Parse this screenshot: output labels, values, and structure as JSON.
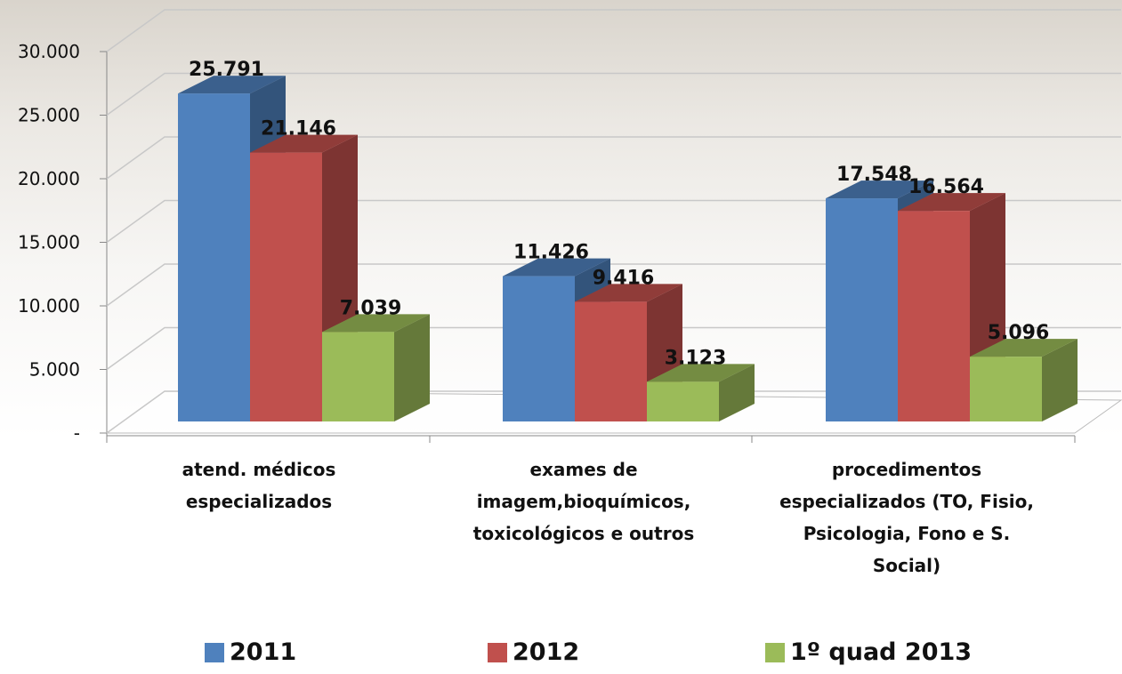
{
  "chart_data": {
    "type": "bar3d",
    "categories": [
      "atend. médicos especializados",
      "exames de imagem,bioquímicos, toxicológicos e outros",
      "procedimentos especializados (TO, Fisio, Psicologia, Fono e S. Social)"
    ],
    "series": [
      {
        "name": "2011",
        "color": "#4f81bd",
        "values": [
          25791,
          11426,
          17548
        ],
        "value_labels": [
          "25.791",
          "11.426",
          "17.548"
        ]
      },
      {
        "name": "2012",
        "color": "#c0504d",
        "values": [
          21146,
          9416,
          16564
        ],
        "value_labels": [
          "21.146",
          "9.416",
          "16.564"
        ]
      },
      {
        "name": "1º quad 2013",
        "color": "#9bbb59",
        "values": [
          7039,
          3123,
          5096
        ],
        "value_labels": [
          "7.039",
          "3.123",
          "5.096"
        ]
      }
    ],
    "ylim": [
      0,
      30000
    ],
    "yticks": [
      {
        "value": 0,
        "label": "-"
      },
      {
        "value": 5000,
        "label": "5.000"
      },
      {
        "value": 10000,
        "label": "10.000"
      },
      {
        "value": 15000,
        "label": "15.000"
      },
      {
        "value": 20000,
        "label": "20.000"
      },
      {
        "value": 25000,
        "label": "25.000"
      },
      {
        "value": 30000,
        "label": "30.000"
      }
    ],
    "grid": true
  }
}
